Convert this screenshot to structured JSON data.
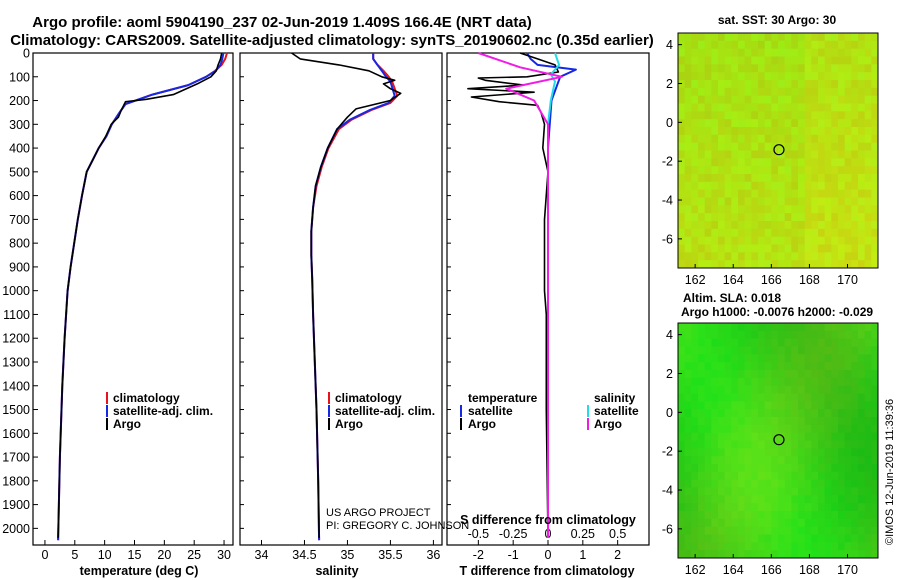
{
  "header": {
    "title_line1": "Argo profile: aoml 5904190_237 02-Jun-2019 1.409S 166.4E (NRT data)",
    "title_line2": "Climatology: CARS2009. Satellite-adjusted climatology: synTS_20190602.nc (0.35d earlier)"
  },
  "colors": {
    "climatology": "#e8121a",
    "satellite": "#1428e6",
    "argo": "#000000",
    "sal_satellite": "#22dde8",
    "sal_argo": "#f01ce6"
  },
  "depth_axis": {
    "ticks": [
      "0",
      "100",
      "200",
      "300",
      "400",
      "500",
      "600",
      "700",
      "800",
      "900",
      "1000",
      "1100",
      "1200",
      "1300",
      "1400",
      "1500",
      "1600",
      "1700",
      "1800",
      "1900",
      "2000"
    ],
    "range": [
      0,
      2070
    ]
  },
  "temperature_panel": {
    "xlabel": "temperature (deg C)",
    "ticks": [
      "0",
      "5",
      "10",
      "15",
      "20",
      "25",
      "30"
    ],
    "xrange": [
      -2,
      31.5
    ],
    "legend": [
      "climatology",
      "satellite-adj. clim.",
      "Argo"
    ]
  },
  "salinity_panel": {
    "xlabel": "salinity",
    "ticks": [
      "34",
      "34.5",
      "35",
      "35.5",
      "36"
    ],
    "xrange": [
      33.75,
      36.1
    ],
    "legend": [
      "climatology",
      "satellite-adj. clim.",
      "Argo"
    ],
    "credit_line1": "US ARGO PROJECT",
    "credit_line2": "PI: GREGORY C. JOHNSON"
  },
  "difference_panel": {
    "xlabel_bottom": "T difference from climatology",
    "xlabel_top": "S difference from climatology",
    "t_ticks": [
      "-2",
      "-1",
      "0",
      "1",
      "2"
    ],
    "t_range": [
      -2.9,
      2.9
    ],
    "s_ticks": [
      "-0.5",
      "-0.25",
      "0",
      "0.25",
      "0.5"
    ],
    "legend_temperature_header": "temperature",
    "legend_salinity_header": "salinity",
    "legend_labels": [
      "satellite",
      "Argo"
    ]
  },
  "sst_map": {
    "title": "sat. SST: 30 Argo: 30",
    "yticks": [
      "4",
      "2",
      "0",
      "-2",
      "-4",
      "-6"
    ],
    "xticks": [
      "162",
      "164",
      "166",
      "168",
      "170"
    ]
  },
  "sla_map": {
    "title_line1": "Altim. SLA: 0.018",
    "title_line2": "Argo h1000: -0.0076 h2000: -0.029",
    "yticks": [
      "4",
      "2",
      "0",
      "-2",
      "-4",
      "-6"
    ],
    "xticks": [
      "162",
      "164",
      "166",
      "168",
      "170"
    ]
  },
  "watermark": "©IMOS 12-Jun-2019 11:39:36",
  "chart_data": [
    {
      "type": "line",
      "title": "temperature (deg C)",
      "xlabel": "temperature (deg C)",
      "ylabel": "depth",
      "xlim": [
        -2,
        31.5
      ],
      "ylim": [
        2070,
        0
      ],
      "series": [
        {
          "name": "climatology",
          "x": [
            30.5,
            30.2,
            29.6,
            28.5,
            27.0,
            24.0,
            18.0,
            13.5,
            12.5,
            11.2,
            10.3,
            9.0,
            8.0,
            7.0,
            6.2,
            5.5,
            4.9,
            4.3,
            3.8,
            3.3,
            2.9,
            2.5,
            2.2
          ],
          "y": [
            0,
            25,
            50,
            75,
            100,
            135,
            175,
            215,
            250,
            300,
            350,
            400,
            450,
            500,
            600,
            700,
            800,
            900,
            1000,
            1200,
            1400,
            1700,
            2050
          ]
        },
        {
          "name": "satellite-adj. clim.",
          "x": [
            29.9,
            29.7,
            29.4,
            28.6,
            27.0,
            24.0,
            18.0,
            13.5,
            12.5,
            11.2,
            10.3,
            9.0,
            8.0,
            7.0,
            6.2,
            5.5,
            4.9,
            4.3,
            3.8,
            3.3,
            2.9,
            2.5,
            2.2
          ],
          "y": [
            0,
            25,
            50,
            75,
            100,
            135,
            175,
            215,
            250,
            300,
            350,
            400,
            450,
            500,
            600,
            700,
            800,
            900,
            1000,
            1200,
            1400,
            1700,
            2050
          ]
        },
        {
          "name": "Argo",
          "x": [
            29.6,
            29.4,
            29.0,
            28.7,
            27.8,
            25.5,
            21.5,
            17.0,
            13.5,
            12.8,
            12.3,
            11.1,
            10.2,
            9.0,
            8.0,
            7.0,
            6.2,
            5.5,
            4.9,
            4.3,
            3.8,
            3.3,
            2.9,
            2.5,
            2.2
          ],
          "y": [
            0,
            25,
            50,
            75,
            100,
            130,
            175,
            195,
            205,
            240,
            270,
            300,
            350,
            400,
            450,
            500,
            600,
            700,
            800,
            900,
            1000,
            1200,
            1400,
            1700,
            2040
          ]
        }
      ]
    },
    {
      "type": "line",
      "title": "salinity",
      "xlabel": "salinity",
      "ylabel": "depth",
      "xlim": [
        33.75,
        36.1
      ],
      "ylim": [
        2070,
        0
      ],
      "series": [
        {
          "name": "climatology",
          "x": [
            35.3,
            35.3,
            35.35,
            35.42,
            35.48,
            35.52,
            35.58,
            35.5,
            35.28,
            35.05,
            34.9,
            34.78,
            34.7,
            34.64,
            34.6,
            34.58,
            34.58,
            34.59,
            34.6,
            34.62,
            34.64,
            34.66,
            34.67
          ],
          "y": [
            0,
            25,
            50,
            75,
            100,
            120,
            180,
            210,
            240,
            280,
            320,
            400,
            480,
            560,
            650,
            750,
            850,
            950,
            1100,
            1300,
            1500,
            1800,
            2050
          ]
        },
        {
          "name": "satellite-adj. clim.",
          "x": [
            35.3,
            35.3,
            35.35,
            35.4,
            35.45,
            35.5,
            35.55,
            35.48,
            35.26,
            35.03,
            34.88,
            34.77,
            34.69,
            34.63,
            34.6,
            34.58,
            34.58,
            34.59,
            34.6,
            34.62,
            34.64,
            34.66,
            34.67
          ],
          "y": [
            0,
            25,
            50,
            75,
            100,
            120,
            180,
            210,
            240,
            280,
            320,
            400,
            480,
            560,
            650,
            750,
            850,
            950,
            1100,
            1300,
            1500,
            1800,
            2050
          ]
        },
        {
          "name": "Argo",
          "x": [
            34.35,
            34.45,
            34.9,
            35.25,
            35.4,
            35.55,
            35.42,
            35.5,
            35.62,
            35.5,
            35.1,
            35.0,
            34.88,
            34.77,
            34.69,
            34.63,
            34.6,
            34.58,
            34.58,
            34.59,
            34.6,
            34.62,
            34.64,
            34.66,
            34.67
          ],
          "y": [
            0,
            25,
            50,
            75,
            100,
            115,
            130,
            150,
            170,
            200,
            235,
            270,
            320,
            400,
            480,
            560,
            650,
            750,
            850,
            950,
            1100,
            1300,
            1500,
            1800,
            2040
          ]
        }
      ]
    },
    {
      "type": "line",
      "title": "difference from climatology",
      "xlabel": "T difference from climatology",
      "ylabel": "depth",
      "xlim": [
        -2.9,
        2.9
      ],
      "ylim": [
        2070,
        0
      ],
      "series": [
        {
          "name": "temperature satellite",
          "x": [
            -0.6,
            -0.5,
            -0.3,
            0.8,
            0.35,
            0.1,
            0.0,
            0.0,
            0.0,
            0.0
          ],
          "y": [
            0,
            25,
            50,
            70,
            100,
            200,
            400,
            800,
            1400,
            2040
          ]
        },
        {
          "name": "temperature Argo",
          "x": [
            -0.8,
            -0.3,
            0.2,
            0.3,
            -0.6,
            -2.0,
            -1.8,
            -0.7,
            -2.3,
            -0.4,
            -2.2,
            -1.4,
            -0.3,
            -0.2,
            -0.1,
            -0.15,
            0.0,
            -0.1,
            -0.1,
            -0.05,
            -0.05,
            0.0
          ],
          "y": [
            0,
            25,
            50,
            80,
            100,
            105,
            115,
            135,
            150,
            165,
            185,
            205,
            220,
            250,
            300,
            400,
            500,
            700,
            1000,
            1100,
            1500,
            2040
          ]
        },
        {
          "name": "salinity satellite",
          "x": [
            0.05,
            0.08,
            0.02,
            0.05,
            0.02,
            0.0,
            0.0,
            0.0,
            0.0
          ],
          "y": [
            0,
            50,
            90,
            120,
            200,
            300,
            600,
            1200,
            2040
          ]
        },
        {
          "name": "salinity Argo",
          "x": [
            -0.5,
            -0.2,
            0.1,
            -0.3,
            -0.2,
            -0.1,
            0.0,
            0.0,
            0.0
          ],
          "y": [
            0,
            60,
            100,
            150,
            175,
            200,
            300,
            1000,
            2040
          ]
        }
      ]
    }
  ]
}
